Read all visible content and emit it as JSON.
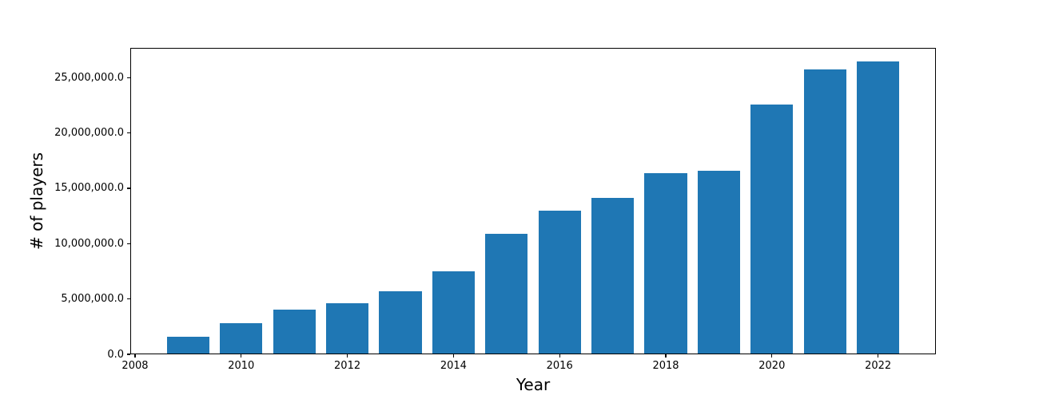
{
  "figure": {
    "background": "#ffffff",
    "text_color": "#000000"
  },
  "chart_data": {
    "type": "bar",
    "title": "",
    "xlabel": "Year",
    "ylabel": "# of players",
    "bar_color": "#1f77b4",
    "grid": false,
    "legend_position": "none",
    "bar_width_years": 0.8,
    "xlim": [
      2007.91,
      2023.09
    ],
    "ylim": [
      0,
      27690000
    ],
    "categories": [
      2009,
      2010,
      2011,
      2012,
      2013,
      2014,
      2015,
      2016,
      2017,
      2018,
      2019,
      2020,
      2021,
      2022
    ],
    "values": [
      1600000,
      2800000,
      4050000,
      4650000,
      5700000,
      7500000,
      10900000,
      13000000,
      14150000,
      16350000,
      16600000,
      22600000,
      25750000,
      26450000
    ],
    "xticks": [
      {
        "value": 2008,
        "label": "2008"
      },
      {
        "value": 2010,
        "label": "2010"
      },
      {
        "value": 2012,
        "label": "2012"
      },
      {
        "value": 2014,
        "label": "2014"
      },
      {
        "value": 2016,
        "label": "2016"
      },
      {
        "value": 2018,
        "label": "2018"
      },
      {
        "value": 2020,
        "label": "2020"
      },
      {
        "value": 2022,
        "label": "2022"
      }
    ],
    "yticks": [
      {
        "value": 0,
        "label": "0.0"
      },
      {
        "value": 5000000,
        "label": "5,000,000.0"
      },
      {
        "value": 10000000,
        "label": "10,000,000.0"
      },
      {
        "value": 15000000,
        "label": "15,000,000.0"
      },
      {
        "value": 20000000,
        "label": "20,000,000.0"
      },
      {
        "value": 25000000,
        "label": "25,000,000.0"
      }
    ]
  }
}
